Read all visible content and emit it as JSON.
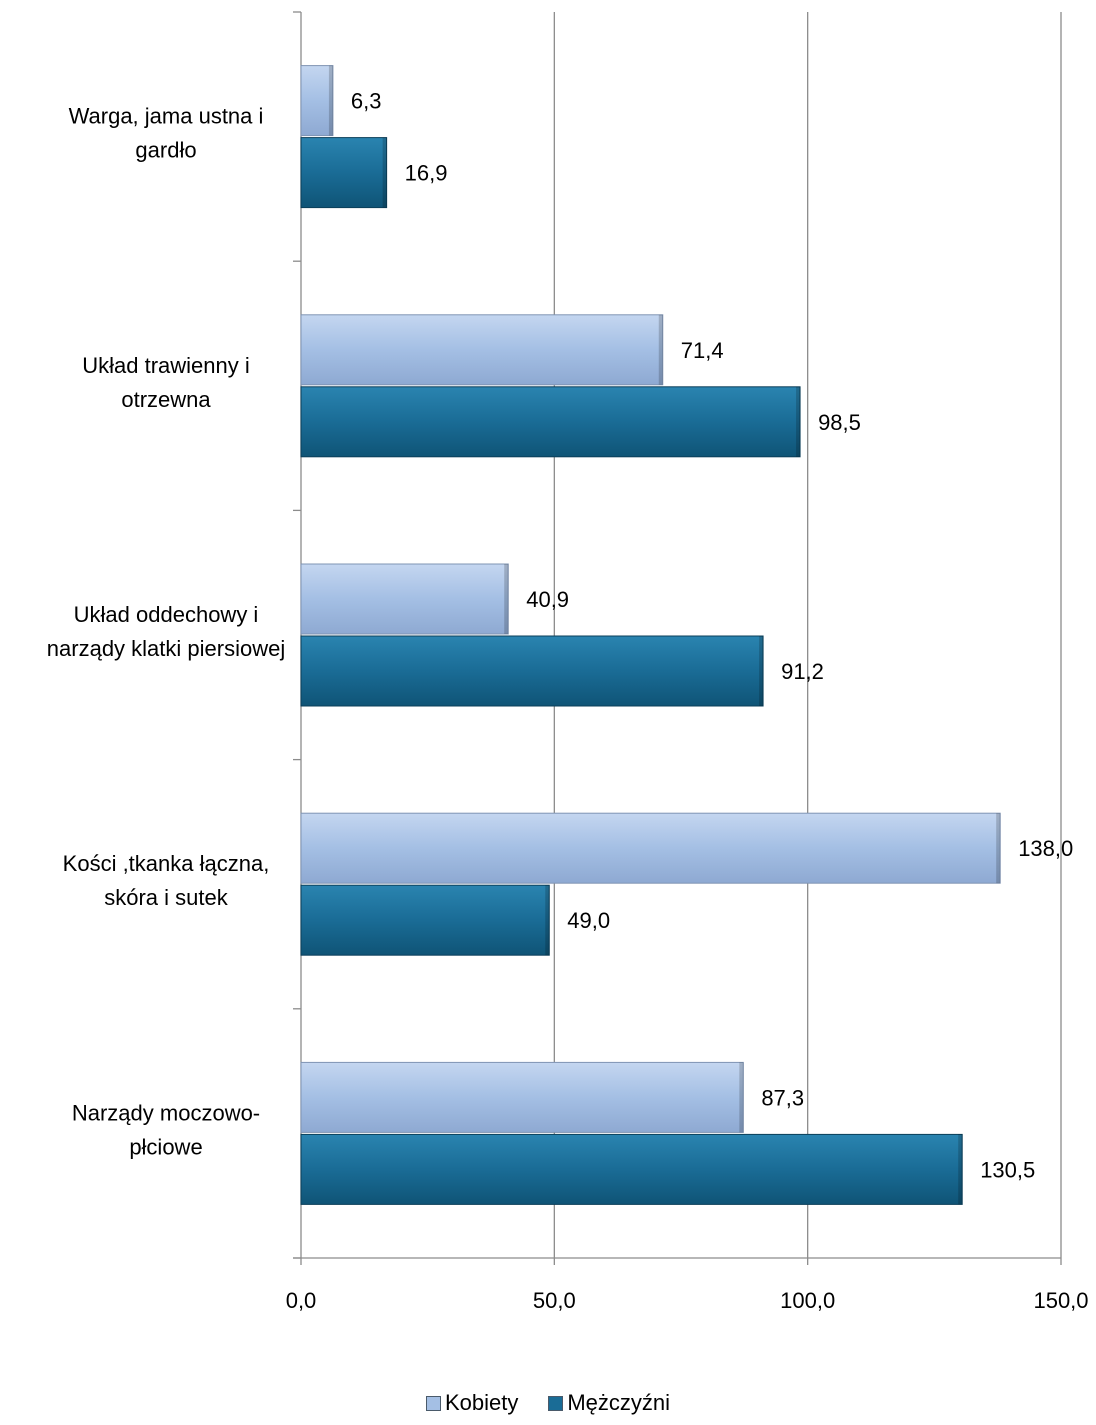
{
  "chart_data": {
    "type": "bar",
    "orientation": "horizontal",
    "categories": [
      [
        "Warga, jama ustna i",
        "gardło"
      ],
      [
        "Układ trawienny i",
        "otrzewna"
      ],
      [
        "Układ oddechowy i",
        "narządy klatki piersiowej"
      ],
      [
        "Kości ,tkanka łączna,",
        "skóra i sutek"
      ],
      [
        "Narządy moczowo-",
        "płciowe"
      ]
    ],
    "series": [
      {
        "name": "Kobiety",
        "values": [
          6.3,
          71.4,
          40.9,
          138.0,
          87.3
        ],
        "labels": [
          "6,3",
          "71,4",
          "40,9",
          "138,0",
          "87,3"
        ],
        "color": "#a4bfe4"
      },
      {
        "name": "Mężczyźni",
        "values": [
          16.9,
          98.5,
          91.2,
          49.0,
          130.5
        ],
        "labels": [
          "16,9",
          "98,5",
          "91,2",
          "49,0",
          "130,5"
        ],
        "color": "#1a6c96"
      }
    ],
    "xlim": [
      0,
      150
    ],
    "xticks": [
      0,
      50,
      100,
      150
    ],
    "xtick_labels": [
      "0,0",
      "50,0",
      "100,0",
      "150,0"
    ],
    "grid": true,
    "legend_position": "bottom"
  }
}
